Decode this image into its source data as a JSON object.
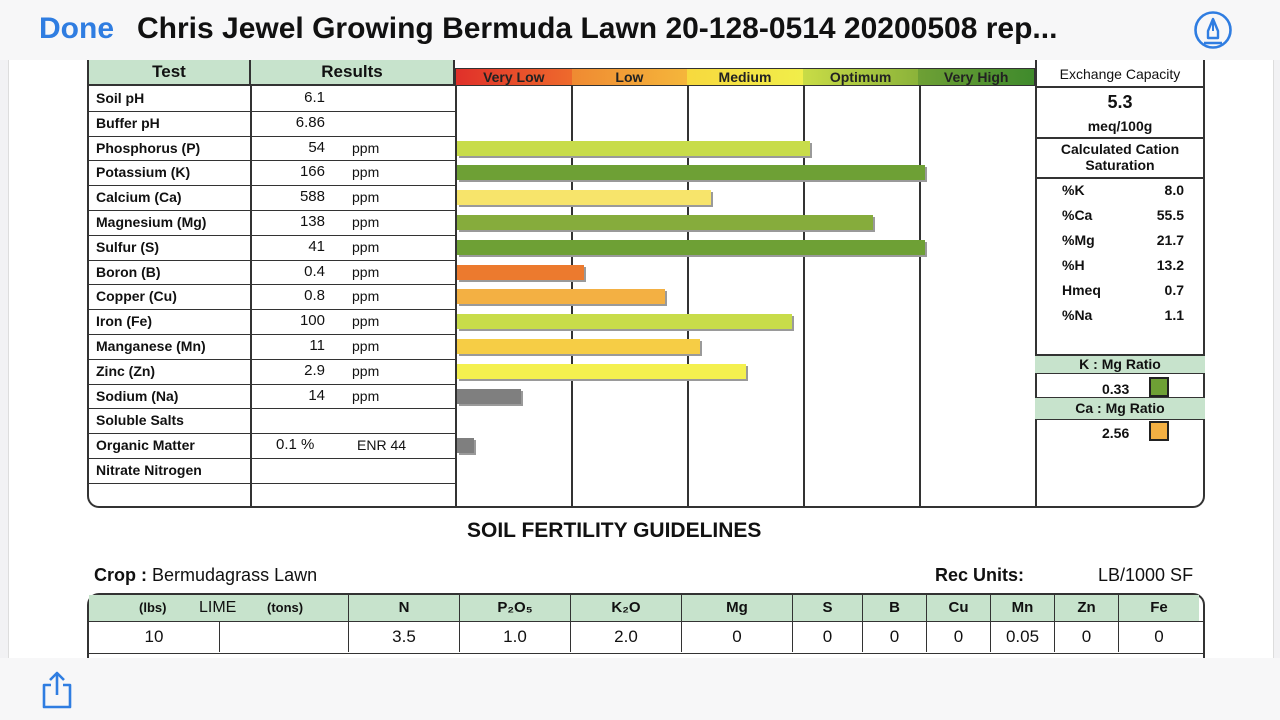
{
  "nav": {
    "done_label": "Done",
    "doc_title": "Chris Jewel Growing Bermuda  Lawn 20-128-0514 20200508 rep...",
    "markup_icon": "markup-pen-icon",
    "share_icon": "share-icon"
  },
  "soil_table": {
    "header_test": "Test",
    "header_results": "Results",
    "ratings": [
      "Very Low",
      "Low",
      "Medium",
      "Optimum",
      "Very High"
    ],
    "rows": [
      {
        "test": "Soil pH",
        "value": "6.1",
        "unit": "",
        "level": null,
        "color": ""
      },
      {
        "test": "Buffer pH",
        "value": "6.86",
        "unit": "",
        "level": null,
        "color": ""
      },
      {
        "test": "Phosphorus (P)",
        "value": "54",
        "unit": "ppm",
        "level": 0.61,
        "color": "#c8dc4a"
      },
      {
        "test": "Potassium (K)",
        "value": "166",
        "unit": "ppm",
        "level": 0.81,
        "color": "#6ea035"
      },
      {
        "test": "Calcium (Ca)",
        "value": "588",
        "unit": "ppm",
        "level": 0.44,
        "color": "#f7e46b"
      },
      {
        "test": "Magnesium (Mg)",
        "value": "138",
        "unit": "ppm",
        "level": 0.72,
        "color": "#86ac3c"
      },
      {
        "test": "Sulfur (S)",
        "value": "41",
        "unit": "ppm",
        "level": 0.81,
        "color": "#6ea035"
      },
      {
        "test": "Boron (B)",
        "value": "0.4",
        "unit": "ppm",
        "level": 0.22,
        "color": "#ec7a2e"
      },
      {
        "test": "Copper (Cu)",
        "value": "0.8",
        "unit": "ppm",
        "level": 0.36,
        "color": "#f3b043"
      },
      {
        "test": "Iron (Fe)",
        "value": "100",
        "unit": "ppm",
        "level": 0.58,
        "color": "#c8dc4a"
      },
      {
        "test": "Manganese (Mn)",
        "value": "11",
        "unit": "ppm",
        "level": 0.42,
        "color": "#f6cd45"
      },
      {
        "test": "Zinc (Zn)",
        "value": "2.9",
        "unit": "ppm",
        "level": 0.5,
        "color": "#f4f04f"
      },
      {
        "test": "Sodium (Na)",
        "value": "14",
        "unit": "ppm",
        "level": 0.11,
        "color": "#7f7f7f"
      },
      {
        "test": "Soluble Salts",
        "value": "",
        "unit": "",
        "level": null,
        "color": ""
      },
      {
        "test": "Organic Matter",
        "value": "0.1 %",
        "unit": "ENR 44",
        "level": 0.03,
        "color": "#7f7f7f"
      },
      {
        "test": "Nitrate Nitrogen",
        "value": "",
        "unit": "",
        "level": null,
        "color": ""
      }
    ]
  },
  "cec": {
    "title": "Exchange Capacity",
    "value": "5.3",
    "units": "meq/100g",
    "saturation_title": "Calculated Cation Saturation",
    "saturation": [
      {
        "k": "%K",
        "v": "8.0"
      },
      {
        "k": "%Ca",
        "v": "55.5"
      },
      {
        "k": "%Mg",
        "v": "21.7"
      },
      {
        "k": "%H",
        "v": "13.2"
      },
      {
        "k": "Hmeq",
        "v": "0.7"
      },
      {
        "k": "%Na",
        "v": "1.1"
      }
    ],
    "k_mg_title": "K : Mg Ratio",
    "k_mg_value": "0.33",
    "k_mg_color": "#6ea035",
    "ca_mg_title": "Ca : Mg Ratio",
    "ca_mg_value": "2.56",
    "ca_mg_color": "#f3b043"
  },
  "guidelines": {
    "title": "SOIL FERTILITY GUIDELINES",
    "crop_label": "Crop :",
    "crop_value": "Bermudagrass Lawn",
    "rec_units_label": "Rec Units:",
    "rec_units_value": "LB/1000 SF",
    "lime_lbs": "(lbs)",
    "lime_label": "LIME",
    "lime_tons": "(tons)",
    "headers": [
      "N",
      "P₂O₅",
      "K₂O",
      "Mg",
      "S",
      "B",
      "Cu",
      "Mn",
      "Zn",
      "Fe"
    ],
    "lime_value": "10",
    "values": [
      "3.5",
      "1.0",
      "2.0",
      "0",
      "0",
      "0",
      "0",
      "0.05",
      "0",
      "0"
    ]
  }
}
